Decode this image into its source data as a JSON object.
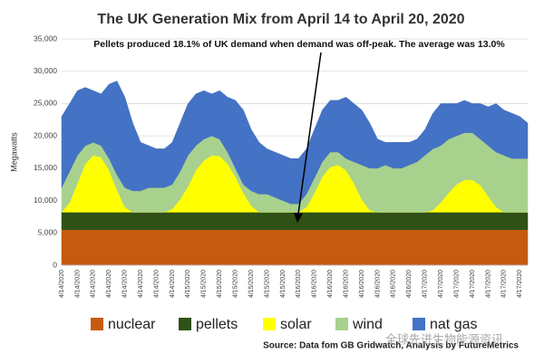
{
  "chart_data": {
    "type": "stacked_area",
    "title": "The UK Generation Mix from April 14 to April 20, 2020",
    "annotation": "Pellets produced 18.1% of UK demand when demand was off-peak.  The average was 13.0%",
    "y_label": "Megawatts",
    "source": "Source: Data fom GB Gridwatch, Analysis by FutureMetrics",
    "watermark": "全球先进生物能源资讯",
    "categories": [
      "4/14/2020",
      null,
      "4/14/2020",
      null,
      "4/14/2020",
      null,
      "4/14/2020",
      null,
      "4/14/2020",
      null,
      "4/14/2020",
      null,
      "4/14/2020",
      null,
      "4/14/2020",
      null,
      "4/15/2020",
      null,
      "4/15/2020",
      null,
      "4/15/2020",
      null,
      "4/15/2020",
      null,
      "4/15/2020",
      null,
      "4/15/2020",
      null,
      "4/15/2020",
      null,
      "4/16/2020",
      null,
      "4/16/2020",
      null,
      "4/16/2020",
      null,
      "4/16/2020",
      null,
      "4/16/2020",
      null,
      "4/16/2020",
      null,
      "4/16/2020",
      null,
      "4/16/2020",
      null,
      "4/17/2020",
      null,
      "4/17/2020",
      null,
      "4/17/2020",
      null,
      "4/17/2020",
      null,
      "4/17/2020",
      null,
      "4/17/2020",
      null,
      "4/17/2020",
      null
    ],
    "series": [
      {
        "name": "nuclear",
        "color": "#c55a11",
        "values": [
          5500,
          5500,
          5500,
          5500,
          5500,
          5500,
          5500,
          5500,
          5500,
          5500,
          5500,
          5500,
          5500,
          5500,
          5500,
          5500,
          5500,
          5500,
          5500,
          5500,
          5500,
          5500,
          5500,
          5500,
          5500,
          5500,
          5500,
          5500,
          5500,
          5500,
          5500,
          5500,
          5500,
          5500,
          5500,
          5500,
          5500,
          5500,
          5500,
          5500,
          5500,
          5500,
          5500,
          5500,
          5500,
          5500,
          5500,
          5500,
          5500,
          5500,
          5500,
          5500,
          5500,
          5500,
          5500,
          5500,
          5500,
          5500,
          5500,
          5500
        ]
      },
      {
        "name": "pellets",
        "color": "#2f5118",
        "values": [
          2700,
          2700,
          2700,
          2700,
          2700,
          2700,
          2700,
          2700,
          2700,
          2700,
          2700,
          2700,
          2700,
          2700,
          2700,
          2700,
          2700,
          2700,
          2700,
          2700,
          2700,
          2700,
          2700,
          2700,
          2700,
          2700,
          2700,
          2700,
          2700,
          2700,
          2700,
          2700,
          2700,
          2700,
          2700,
          2700,
          2700,
          2700,
          2700,
          2700,
          2700,
          2700,
          2700,
          2700,
          2700,
          2700,
          2700,
          2700,
          2700,
          2700,
          2700,
          2700,
          2700,
          2700,
          2700,
          2700,
          2700,
          2700,
          2700,
          2700
        ]
      },
      {
        "name": "solar",
        "color": "#ffff00",
        "values": [
          0,
          1500,
          4500,
          7500,
          8800,
          8500,
          6500,
          3500,
          800,
          0,
          0,
          0,
          0,
          0,
          500,
          2000,
          4000,
          6500,
          8000,
          8800,
          8700,
          7500,
          5500,
          3000,
          1000,
          0,
          0,
          0,
          0,
          0,
          0,
          800,
          3000,
          5500,
          7000,
          7300,
          6500,
          4500,
          2000,
          300,
          0,
          0,
          0,
          0,
          0,
          0,
          0,
          300,
          1500,
          3000,
          4300,
          5000,
          5000,
          4200,
          2500,
          800,
          0,
          0,
          0,
          0
        ]
      },
      {
        "name": "wind",
        "color": "#a9d18e",
        "values": [
          3800,
          4800,
          4300,
          2800,
          2000,
          1800,
          1800,
          2300,
          3000,
          3300,
          3300,
          3800,
          3800,
          3800,
          3800,
          4300,
          4800,
          3800,
          3300,
          3000,
          2600,
          1800,
          1300,
          1300,
          2300,
          2800,
          2800,
          2300,
          1800,
          1300,
          1300,
          2000,
          2300,
          2300,
          2300,
          2000,
          1800,
          3300,
          5300,
          6500,
          6800,
          7300,
          6800,
          6800,
          7300,
          7800,
          8800,
          9500,
          8800,
          8300,
          7500,
          7300,
          7300,
          7100,
          7800,
          8500,
          8800,
          8300,
          8300,
          8300
        ]
      },
      {
        "name": "nat gas",
        "color": "#4472c4",
        "values": [
          11000,
          10500,
          10000,
          9000,
          8000,
          8000,
          11500,
          14500,
          14000,
          10500,
          7500,
          6500,
          6000,
          6000,
          6500,
          7500,
          8000,
          8000,
          7500,
          6500,
          7500,
          8500,
          10500,
          11500,
          9500,
          8000,
          7000,
          7000,
          7000,
          7000,
          7000,
          7000,
          7500,
          8000,
          8000,
          8000,
          9500,
          9000,
          8500,
          7000,
          4500,
          3500,
          4000,
          4000,
          3500,
          3500,
          4000,
          5500,
          6500,
          5500,
          5000,
          5000,
          4500,
          5500,
          6000,
          7500,
          7000,
          7000,
          6500,
          5500
        ]
      }
    ],
    "ylim": [
      0,
      35000
    ],
    "yticks": [
      0,
      {
        "value": 5000,
        "label": "5,000"
      },
      {
        "value": 10000,
        "label": "10,000"
      },
      {
        "value": 15000,
        "label": "15,000"
      },
      {
        "value": 20000,
        "label": "20,000"
      },
      {
        "value": 25000,
        "label": "25,000"
      },
      {
        "value": 30000,
        "label": "30,000"
      },
      {
        "value": 35000,
        "label": "35,000"
      }
    ],
    "grid": true
  }
}
